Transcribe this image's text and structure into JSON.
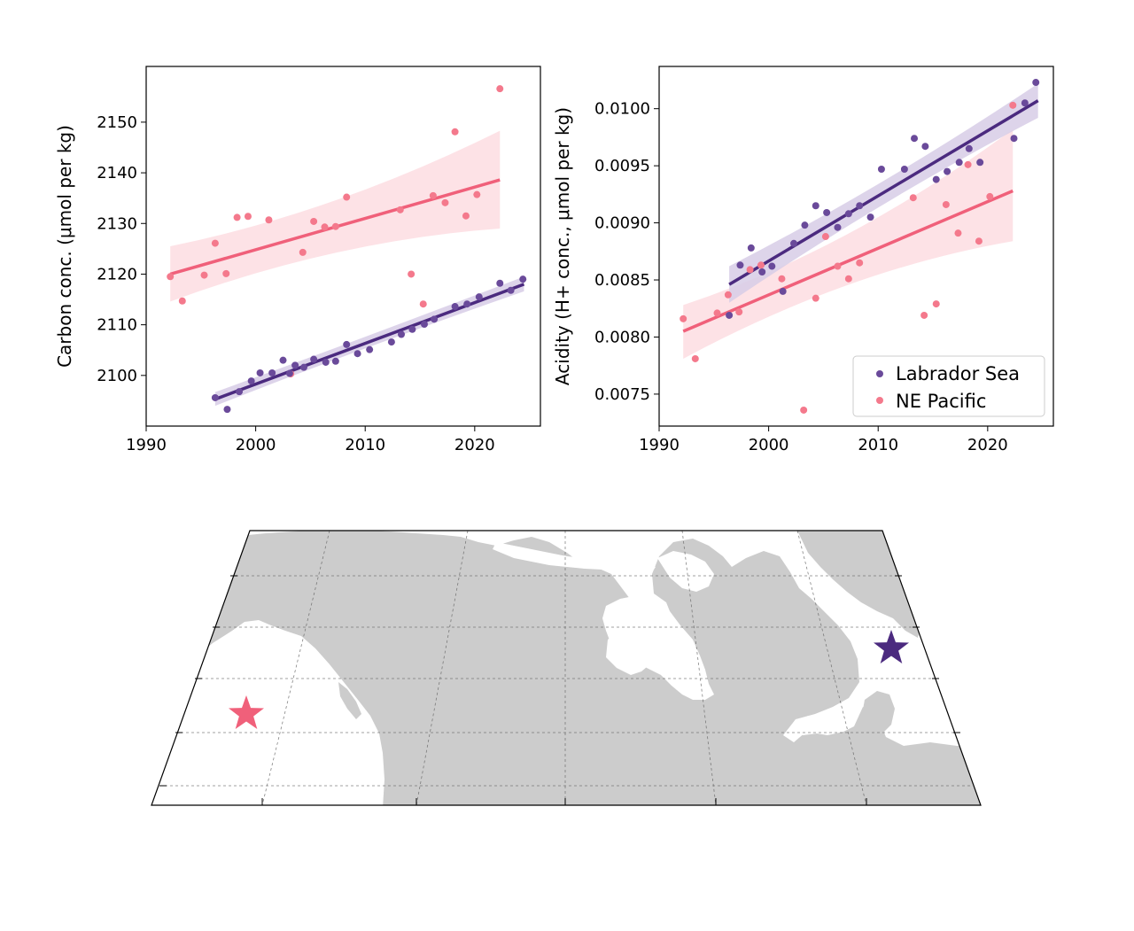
{
  "colors": {
    "labrador": "#4b2a7f",
    "labrador_point": "#6a4a9a",
    "labrador_band": "#d7cde6",
    "pacific": "#f0607a",
    "pacific_point": "#f4798c",
    "pacific_band": "#fde0e5",
    "land": "#cccccc",
    "ocean": "#ffffff",
    "grid": "#555555"
  },
  "chart_data": [
    {
      "type": "scatter",
      "ylabel": "Carbon conc. (μmol per kg)",
      "xlim": [
        1990,
        2026
      ],
      "ylim": [
        2090,
        2161
      ],
      "x_ticks": [
        "1990",
        "2000",
        "2010",
        "2020"
      ],
      "y_ticks": [
        "2100",
        "2110",
        "2120",
        "2130",
        "2140",
        "2150"
      ],
      "series": [
        {
          "name": "Labrador Sea",
          "points": [
            [
              1996.3,
              2095.6
            ],
            [
              1997.4,
              2093.3
            ],
            [
              1998.5,
              2096.8
            ],
            [
              1999.6,
              2098.9
            ],
            [
              2000.4,
              2100.5
            ],
            [
              2001.5,
              2100.5
            ],
            [
              2002.5,
              2103.0
            ],
            [
              2003.1,
              2100.4
            ],
            [
              2003.6,
              2102.0
            ],
            [
              2004.4,
              2101.6
            ],
            [
              2005.3,
              2103.2
            ],
            [
              2006.4,
              2102.6
            ],
            [
              2007.3,
              2102.8
            ],
            [
              2008.3,
              2106.1
            ],
            [
              2009.3,
              2104.3
            ],
            [
              2010.4,
              2105.1
            ],
            [
              2012.4,
              2106.6
            ],
            [
              2013.3,
              2108.1
            ],
            [
              2014.3,
              2109.1
            ],
            [
              2015.4,
              2110.1
            ],
            [
              2016.3,
              2111.1
            ],
            [
              2018.2,
              2113.6
            ],
            [
              2019.3,
              2114.1
            ],
            [
              2020.4,
              2115.5
            ],
            [
              2022.3,
              2118.2
            ],
            [
              2023.3,
              2116.8
            ],
            [
              2024.4,
              2119.0
            ]
          ],
          "trend": [
            [
              1996.3,
              2095.3
            ],
            [
              2024.5,
              2118.0
            ]
          ],
          "band": [
            [
              1996.3,
              2094.0,
              2096.7
            ],
            [
              2010.4,
              2106.0,
              2107.8
            ],
            [
              2024.5,
              2116.6,
              2119.5
            ]
          ]
        },
        {
          "name": "NE Pacific",
          "points": [
            [
              1992.2,
              2119.5
            ],
            [
              1993.3,
              2114.7
            ],
            [
              1995.3,
              2119.8
            ],
            [
              1996.3,
              2126.1
            ],
            [
              1997.3,
              2120.1
            ],
            [
              1998.3,
              2131.2
            ],
            [
              1999.3,
              2131.4
            ],
            [
              2001.2,
              2130.7
            ],
            [
              2003.2,
              2100.3
            ],
            [
              2004.3,
              2124.3
            ],
            [
              2005.3,
              2130.4
            ],
            [
              2006.3,
              2129.3
            ],
            [
              2007.3,
              2129.4
            ],
            [
              2008.3,
              2135.2
            ],
            [
              2013.2,
              2132.7
            ],
            [
              2014.2,
              2120.0
            ],
            [
              2015.3,
              2114.1
            ],
            [
              2016.2,
              2135.5
            ],
            [
              2017.3,
              2134.1
            ],
            [
              2018.2,
              2148.1
            ],
            [
              2019.2,
              2131.5
            ],
            [
              2020.2,
              2135.7
            ],
            [
              2022.3,
              2156.6
            ]
          ],
          "trend": [
            [
              1992.2,
              2120.0
            ],
            [
              2022.3,
              2138.6
            ]
          ],
          "band": [
            [
              1992.2,
              2114.6,
              2125.5
            ],
            [
              2007.3,
              2126.6,
              2132.2
            ],
            [
              2022.3,
              2129.0,
              2148.3
            ]
          ]
        }
      ]
    },
    {
      "type": "scatter",
      "ylabel": "Acidity (H+ conc., μmol per kg)",
      "xlim": [
        1990,
        2026
      ],
      "ylim": [
        0.00722,
        0.01037
      ],
      "x_ticks": [
        "1990",
        "2000",
        "2010",
        "2020"
      ],
      "y_ticks": [
        "0.0075",
        "0.0080",
        "0.0085",
        "0.0090",
        "0.0095",
        "0.0100"
      ],
      "legend_position": "lower right",
      "legend": [
        "Labrador Sea",
        "NE Pacific"
      ],
      "series": [
        {
          "name": "Labrador Sea",
          "points": [
            [
              1996.4,
              0.00819
            ],
            [
              1997.4,
              0.00863
            ],
            [
              1998.4,
              0.00878
            ],
            [
              1999.4,
              0.00857
            ],
            [
              2000.3,
              0.00862
            ],
            [
              2001.3,
              0.0084
            ],
            [
              2002.3,
              0.00882
            ],
            [
              2003.3,
              0.00898
            ],
            [
              2004.3,
              0.00915
            ],
            [
              2005.3,
              0.00909
            ],
            [
              2006.3,
              0.00896
            ],
            [
              2007.3,
              0.00908
            ],
            [
              2008.3,
              0.00915
            ],
            [
              2009.3,
              0.00905
            ],
            [
              2010.3,
              0.00947
            ],
            [
              2012.4,
              0.00947
            ],
            [
              2013.3,
              0.00974
            ],
            [
              2014.3,
              0.00967
            ],
            [
              2015.3,
              0.00938
            ],
            [
              2016.3,
              0.00945
            ],
            [
              2017.4,
              0.00953
            ],
            [
              2018.3,
              0.00965
            ],
            [
              2019.3,
              0.00953
            ],
            [
              2022.4,
              0.00974
            ],
            [
              2023.4,
              0.01005
            ],
            [
              2024.4,
              0.01023
            ]
          ],
          "trend": [
            [
              1996.4,
              0.00846
            ],
            [
              2024.6,
              0.01007
            ]
          ],
          "band": [
            [
              1996.4,
              0.0083,
              0.00862
            ],
            [
              2010.4,
              0.00921,
              0.00931
            ],
            [
              2024.6,
              0.00992,
              0.01022
            ]
          ]
        },
        {
          "name": "NE Pacific",
          "points": [
            [
              1992.2,
              0.00816
            ],
            [
              1993.3,
              0.00781
            ],
            [
              1995.3,
              0.00821
            ],
            [
              1996.3,
              0.00837
            ],
            [
              1997.3,
              0.00822
            ],
            [
              1998.3,
              0.00859
            ],
            [
              1999.3,
              0.00863
            ],
            [
              2001.2,
              0.00851
            ],
            [
              2003.2,
              0.00736
            ],
            [
              2004.3,
              0.00834
            ],
            [
              2005.2,
              0.00888
            ],
            [
              2006.3,
              0.00862
            ],
            [
              2007.3,
              0.00851
            ],
            [
              2008.3,
              0.00865
            ],
            [
              2013.2,
              0.00922
            ],
            [
              2014.2,
              0.00819
            ],
            [
              2015.3,
              0.00829
            ],
            [
              2016.2,
              0.00916
            ],
            [
              2017.3,
              0.00891
            ],
            [
              2018.2,
              0.00951
            ],
            [
              2019.2,
              0.00884
            ],
            [
              2020.2,
              0.00923
            ],
            [
              2022.3,
              0.01003
            ]
          ],
          "trend": [
            [
              1992.2,
              0.00805
            ],
            [
              2022.3,
              0.00928
            ]
          ],
          "band": [
            [
              1992.2,
              0.00781,
              0.00828
            ],
            [
              2007.3,
              0.00859,
              0.00876
            ],
            [
              2022.3,
              0.00884,
              0.00982
            ]
          ]
        }
      ]
    }
  ],
  "map": {
    "markers": [
      {
        "site": "NE Pacific",
        "color": "#f0607a"
      },
      {
        "site": "Labrador Sea",
        "color": "#4b2a7f"
      }
    ]
  }
}
